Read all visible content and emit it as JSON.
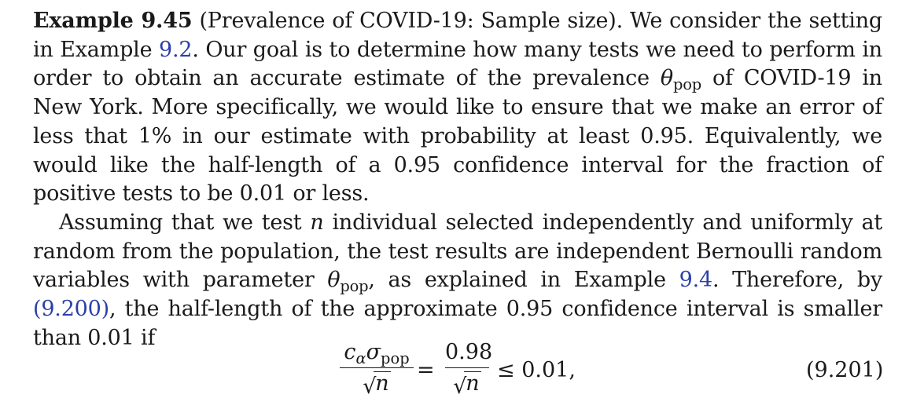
{
  "example": {
    "label": "Example 9.45",
    "title": "(Prevalence of COVID-19: Sample size).",
    "p1_a": " We consider the setting in Example ",
    "ref_example_setting": "9.2",
    "p1_b": ". Our goal is to determine how many tests we need to perform in order to obtain an accurate estimate of the prevalence ",
    "theta": "θ",
    "sub_pop": "pop",
    "p1_c": " of COVID-19 in New York. More specifically, we would like to ensure that we make an error of less that 1% in our estimate with probability at least 0.95. Equivalently, we would like the half-length of a 0.95 confidence interval for the fraction of positive tests to be 0.01 or less.",
    "p2_a": "Assuming that we test ",
    "var_n": "n",
    "p2_b": " individual selected independently and uniformly at random from the population, the test results are independent Bernoulli random variables with parameter ",
    "p2_c": ", as explained in Example ",
    "ref_example_bernoulli": "9.4",
    "p2_d": ". Therefore, by ",
    "ref_equation": "(9.200)",
    "p2_e": ", the half-length of the approximate 0.95 confidence interval is smaller than 0.01 if"
  },
  "equation": {
    "c": "c",
    "alpha": "α",
    "sigma": "σ",
    "sub_pop": "pop",
    "sqrt": "√",
    "n": "n",
    "equals": "=",
    "num2": "0.98",
    "rhs": "≤ 0.01,",
    "number": "(9.201)"
  }
}
